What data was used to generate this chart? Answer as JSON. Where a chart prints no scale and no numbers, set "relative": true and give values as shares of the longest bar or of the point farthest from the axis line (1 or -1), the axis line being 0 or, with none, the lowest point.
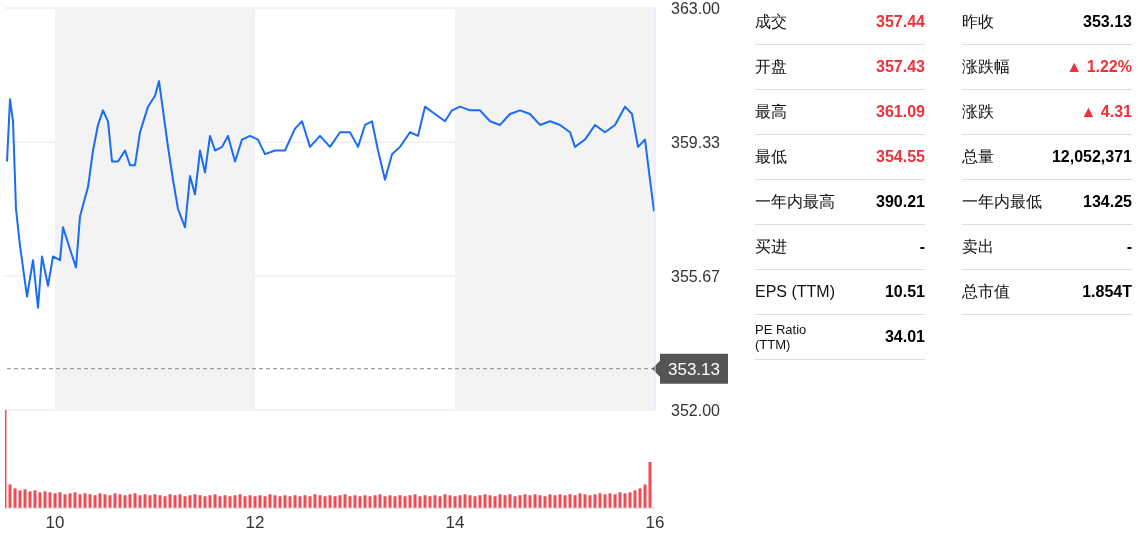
{
  "chart_data": [
    {
      "type": "line",
      "x": [
        9.52,
        9.55,
        9.58,
        9.61,
        9.65,
        9.72,
        9.78,
        9.83,
        9.87,
        9.93,
        9.98,
        10.05,
        10.08,
        10.15,
        10.21,
        10.25,
        10.33,
        10.38,
        10.43,
        10.48,
        10.53,
        10.57,
        10.63,
        10.7,
        10.75,
        10.8,
        10.85,
        10.93,
        11,
        11.04,
        11.08,
        11.13,
        11.18,
        11.23,
        11.3,
        11.35,
        11.4,
        11.45,
        11.5,
        11.55,
        11.6,
        11.67,
        11.73,
        11.8,
        11.87,
        11.95,
        12.03,
        12.1,
        12.2,
        12.3,
        12.4,
        12.47,
        12.55,
        12.65,
        12.75,
        12.85,
        12.95,
        13.03,
        13.1,
        13.17,
        13.23,
        13.3,
        13.37,
        13.45,
        13.55,
        13.63,
        13.7,
        13.8,
        13.9,
        13.97,
        14.05,
        14.15,
        14.25,
        14.35,
        14.45,
        14.55,
        14.65,
        14.75,
        14.85,
        14.95,
        15.05,
        15.15,
        15.2,
        15.3,
        15.4,
        15.5,
        15.6,
        15.7,
        15.77,
        15.83,
        15.9,
        15.95,
        15.99
      ],
      "series": [
        {
          "color": "#1a6cf5",
          "values": [
            358.8,
            360.5,
            359.9,
            357.5,
            356.5,
            355.1,
            356.1,
            354.8,
            356.2,
            355.4,
            356.2,
            356.1,
            357,
            356.4,
            355.9,
            357.3,
            358.1,
            359.1,
            359.8,
            360.2,
            359.9,
            358.8,
            358.8,
            359.1,
            358.7,
            358.7,
            359.6,
            360.3,
            360.6,
            361,
            360.2,
            359.2,
            358.3,
            357.5,
            357,
            358.4,
            357.9,
            359.1,
            358.5,
            359.5,
            359.1,
            359.2,
            359.5,
            358.8,
            359.4,
            359.5,
            359.4,
            359,
            359.1,
            359.1,
            359.7,
            359.9,
            359.2,
            359.5,
            359.2,
            359.6,
            359.6,
            359.2,
            359.8,
            359.9,
            359.1,
            358.3,
            359,
            359.2,
            359.6,
            359.5,
            360.3,
            360.1,
            359.9,
            360.2,
            360.3,
            360.2,
            360.2,
            359.9,
            359.8,
            360.1,
            360.2,
            360.1,
            359.8,
            359.9,
            359.8,
            359.6,
            359.2,
            359.4,
            359.8,
            359.6,
            359.8,
            360.3,
            360.1,
            359.2,
            359.4,
            358.3,
            357.44
          ]
        }
      ],
      "xlim": [
        9.5,
        16
      ],
      "xticks": [
        10,
        12,
        14,
        16
      ],
      "ylim": [
        352,
        363
      ],
      "yticks": [
        {
          "value": 352,
          "label": "352.00"
        },
        355.67,
        359.33,
        {
          "value": 363,
          "label": "363.00"
        }
      ],
      "tick_labels": "y",
      "grid": "y",
      "marker": "none",
      "line_style": "solid",
      "bands": [
        {
          "axis": "x",
          "from": 10,
          "to": 12,
          "color": "#f3f3f3"
        },
        {
          "axis": "x",
          "from": 14,
          "to": 16,
          "color": "#f3f3f3"
        }
      ],
      "ref_lines": [
        {
          "axis": "y",
          "value": 353.13,
          "label": "353.13",
          "color": "#888888",
          "line_style": "dashed"
        }
      ]
    },
    {
      "type": "bar",
      "relative": true,
      "color": "#f04a52",
      "xlim": [
        9.5,
        16
      ],
      "xticks": [
        10,
        12,
        14,
        16
      ],
      "x": [
        9.5,
        9.55,
        9.6,
        9.65,
        9.7,
        9.75,
        9.8,
        9.85,
        9.9,
        9.95,
        10,
        10.05,
        10.1,
        10.15,
        10.2,
        10.25,
        10.3,
        10.35,
        10.4,
        10.45,
        10.5,
        10.55,
        10.6,
        10.65,
        10.7,
        10.75,
        10.8,
        10.85,
        10.9,
        10.95,
        11,
        11.05,
        11.1,
        11.15,
        11.2,
        11.25,
        11.3,
        11.35,
        11.4,
        11.45,
        11.5,
        11.55,
        11.6,
        11.65,
        11.7,
        11.75,
        11.8,
        11.85,
        11.9,
        11.95,
        12,
        12.05,
        12.1,
        12.15,
        12.2,
        12.25,
        12.3,
        12.35,
        12.4,
        12.45,
        12.5,
        12.55,
        12.6,
        12.65,
        12.7,
        12.75,
        12.8,
        12.85,
        12.9,
        12.95,
        13,
        13.05,
        13.1,
        13.15,
        13.2,
        13.25,
        13.3,
        13.35,
        13.4,
        13.45,
        13.5,
        13.55,
        13.6,
        13.65,
        13.7,
        13.75,
        13.8,
        13.85,
        13.9,
        13.95,
        14,
        14.05,
        14.1,
        14.15,
        14.2,
        14.25,
        14.3,
        14.35,
        14.4,
        14.45,
        14.5,
        14.55,
        14.6,
        14.65,
        14.7,
        14.75,
        14.8,
        14.85,
        14.9,
        14.95,
        15,
        15.05,
        15.1,
        15.15,
        15.2,
        15.25,
        15.3,
        15.35,
        15.4,
        15.45,
        15.5,
        15.55,
        15.6,
        15.65,
        15.7,
        15.75,
        15.8,
        15.85,
        15.9,
        15.95
      ],
      "values": [
        1,
        0.24,
        0.2,
        0.18,
        0.19,
        0.17,
        0.18,
        0.16,
        0.17,
        0.16,
        0.15,
        0.16,
        0.14,
        0.15,
        0.16,
        0.14,
        0.15,
        0.14,
        0.13,
        0.15,
        0.14,
        0.13,
        0.15,
        0.14,
        0.13,
        0.14,
        0.15,
        0.13,
        0.14,
        0.13,
        0.14,
        0.13,
        0.12,
        0.14,
        0.13,
        0.14,
        0.12,
        0.13,
        0.14,
        0.13,
        0.12,
        0.13,
        0.14,
        0.12,
        0.13,
        0.12,
        0.13,
        0.14,
        0.12,
        0.13,
        0.12,
        0.13,
        0.12,
        0.14,
        0.13,
        0.12,
        0.13,
        0.12,
        0.13,
        0.12,
        0.13,
        0.12,
        0.14,
        0.13,
        0.12,
        0.13,
        0.12,
        0.13,
        0.14,
        0.12,
        0.13,
        0.12,
        0.13,
        0.12,
        0.13,
        0.14,
        0.12,
        0.13,
        0.12,
        0.13,
        0.12,
        0.13,
        0.14,
        0.12,
        0.13,
        0.12,
        0.13,
        0.12,
        0.14,
        0.13,
        0.12,
        0.13,
        0.14,
        0.13,
        0.12,
        0.13,
        0.14,
        0.13,
        0.12,
        0.14,
        0.13,
        0.14,
        0.12,
        0.13,
        0.14,
        0.13,
        0.14,
        0.13,
        0.12,
        0.14,
        0.13,
        0.14,
        0.13,
        0.14,
        0.13,
        0.15,
        0.14,
        0.13,
        0.14,
        0.15,
        0.14,
        0.15,
        0.14,
        0.16,
        0.15,
        0.16,
        0.18,
        0.2,
        0.24,
        0.47
      ]
    },
    {
      "type": "other",
      "categories": [
        "成交",
        "开盘",
        "最高",
        "最低",
        "一年内最高",
        "买进",
        "EPS (TTM)",
        "PE Ratio (TTM)"
      ],
      "value_labels": [
        "357.44",
        "357.43",
        "361.09",
        "354.55",
        "390.21",
        "-",
        "10.51",
        "34.01"
      ],
      "colors": [
        "#f0313a",
        "#f0313a",
        "#f0313a",
        "#f0313a",
        "#000000",
        "#000000",
        "#000000",
        "#000000"
      ]
    },
    {
      "type": "other",
      "categories": [
        "昨收",
        "涨跌幅",
        "涨跌",
        "总量",
        "一年内最低",
        "卖出",
        "总市值"
      ],
      "value_labels": [
        "353.13",
        "▲ 1.22%",
        "▲ 4.31",
        "12,052,371",
        "134.25",
        "-",
        "1.854T"
      ],
      "colors": [
        "#000000",
        "#f0313a",
        "#f0313a",
        "#000000",
        "#000000",
        "#000000",
        "#000000"
      ]
    }
  ]
}
